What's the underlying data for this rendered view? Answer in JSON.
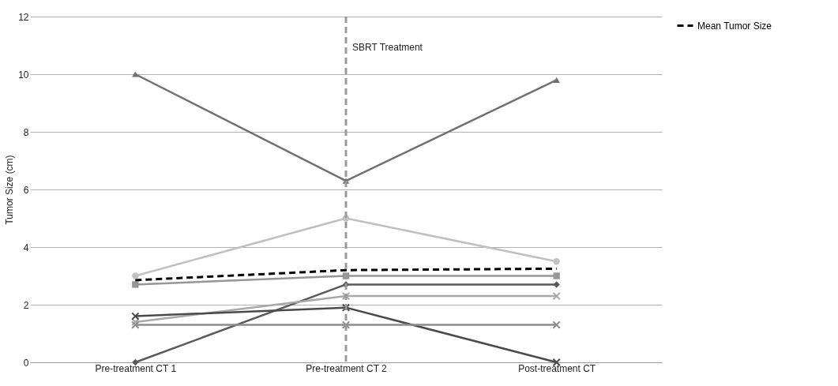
{
  "chart_data": {
    "type": "line",
    "ylabel": "Tumor Size (cm)",
    "categories": [
      "Pre-treatment CT 1",
      "Pre-treatment CT 2",
      "Post-treatment CT"
    ],
    "ylim": [
      0,
      12
    ],
    "yticks": [
      0,
      2,
      4,
      6,
      8,
      10,
      12
    ],
    "grid": "y",
    "legend": "right",
    "series": [
      {
        "color": "#707070",
        "marker": "triangle",
        "values": [
          10,
          6.3,
          9.8
        ]
      },
      {
        "color": "#c0c0c0",
        "marker": "circle",
        "values": [
          3.0,
          5.0,
          3.5
        ]
      },
      {
        "color": "#969696",
        "marker": "square",
        "values": [
          2.7,
          3.0,
          3.0
        ]
      },
      {
        "color": "#5a5a5a",
        "marker": "diamond",
        "values": [
          0,
          2.7,
          2.7
        ]
      },
      {
        "color": "#a8a8a8",
        "marker": "cross",
        "values": [
          1.4,
          2.3,
          2.3
        ]
      },
      {
        "color": "#4a4a4a",
        "marker": "cross",
        "values": [
          1.6,
          1.9,
          0
        ]
      },
      {
        "color": "#8c8c8c",
        "marker": "cross",
        "values": [
          1.3,
          1.3,
          1.3
        ]
      },
      {
        "name": "Mean Tumor Size",
        "color": "#000000",
        "marker": "none",
        "line_style": "dashed",
        "values": [
          2.85,
          3.2,
          3.25
        ]
      }
    ],
    "ref_lines": [
      {
        "axis": "x",
        "value": "Pre-treatment CT 2",
        "label": "SBRT Treatment",
        "color": "#9a9a9a",
        "line_style": "dashed"
      }
    ]
  }
}
